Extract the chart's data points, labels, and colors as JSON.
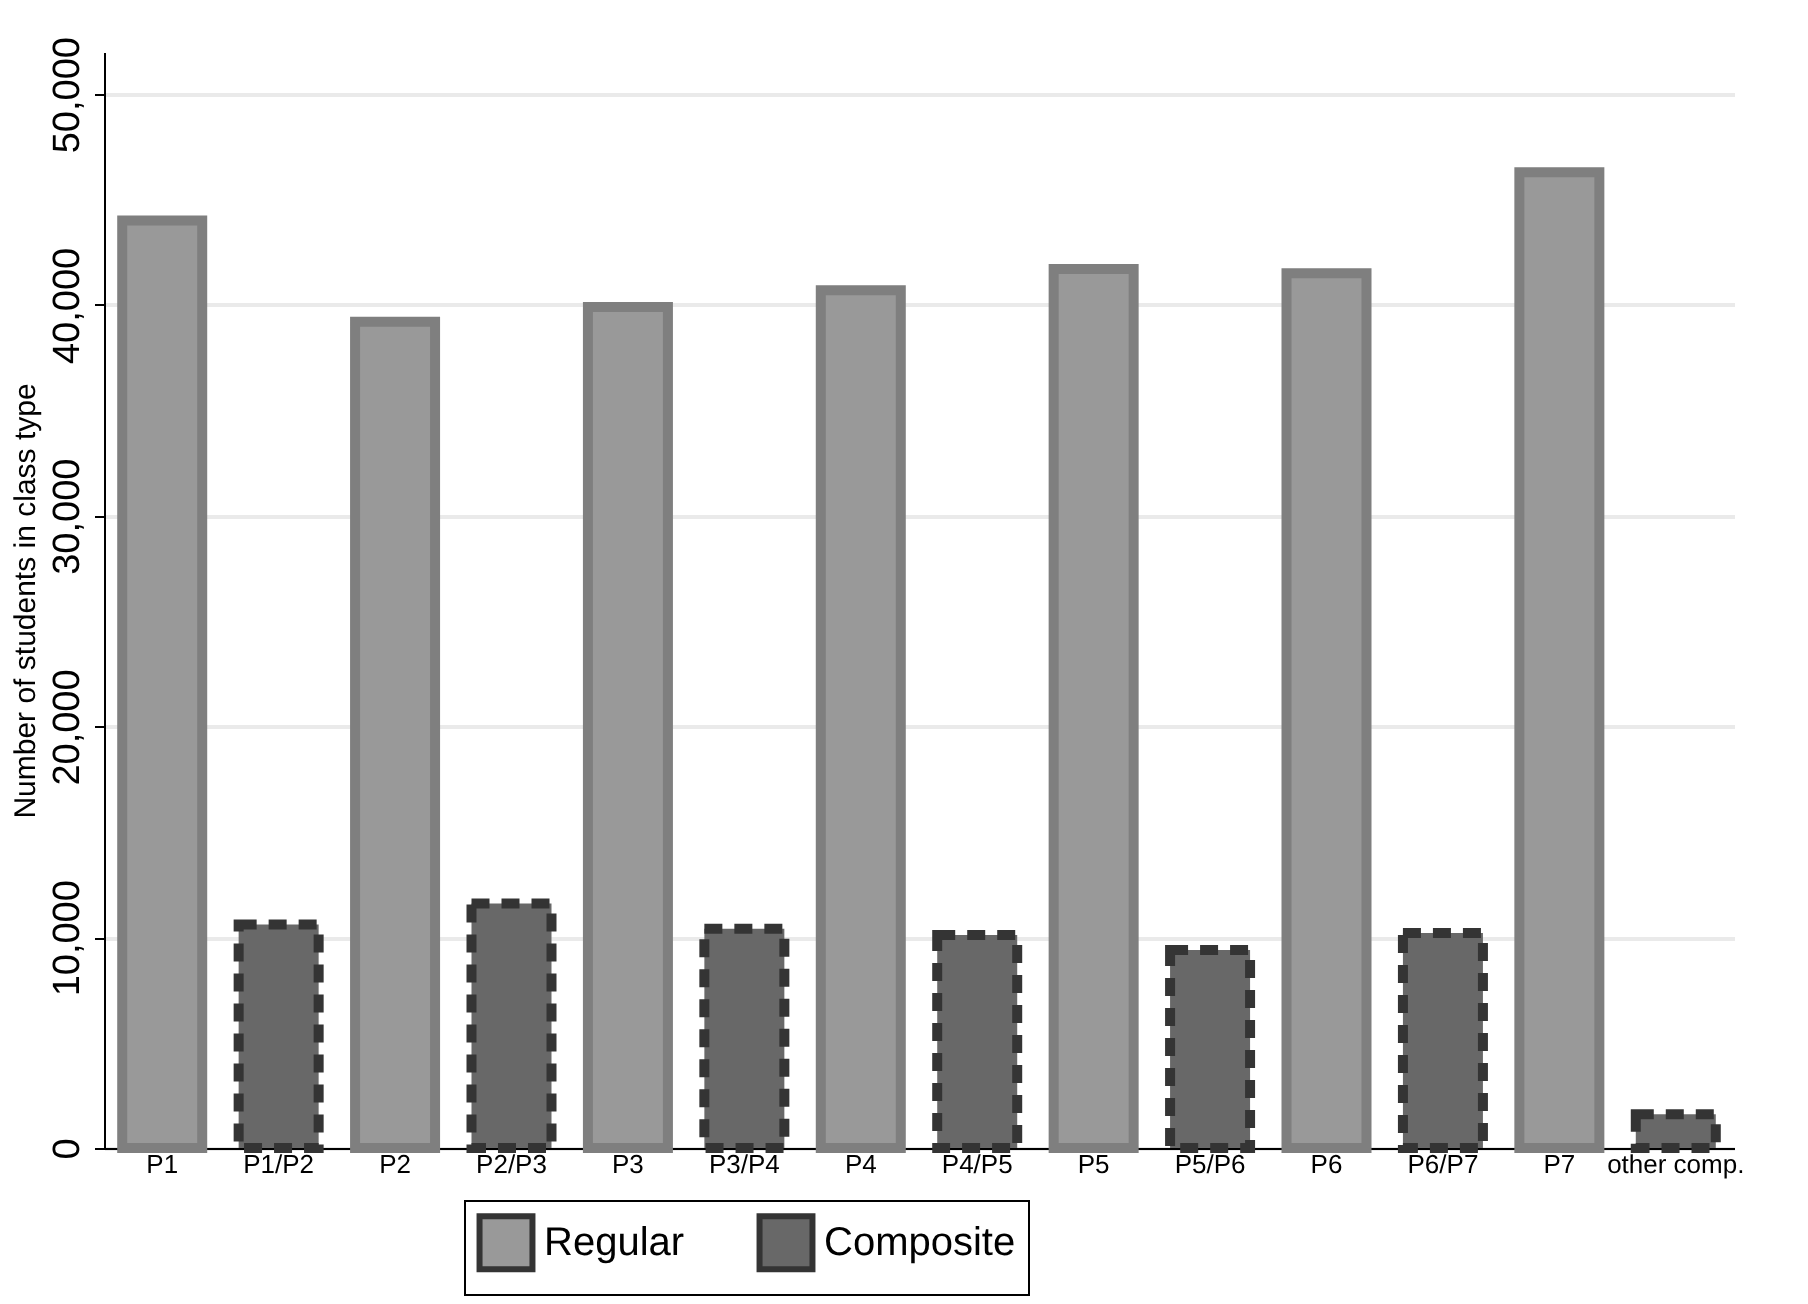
{
  "chart_data": {
    "type": "bar",
    "ylabel": "Number of students in class type",
    "categories": [
      "P1",
      "P1/P2",
      "P2",
      "P2/P3",
      "P3",
      "P3/P4",
      "P4",
      "P4/P5",
      "P5",
      "P5/P6",
      "P6",
      "P6/P7",
      "P7",
      "other comp."
    ],
    "series": [
      {
        "name": "Regular",
        "color": "#999999",
        "values": [
          44000,
          null,
          39200,
          null,
          39900,
          null,
          40700,
          null,
          41700,
          null,
          41500,
          null,
          46300,
          null
        ]
      },
      {
        "name": "Composite",
        "color": "#686868",
        "line_style": "dashed",
        "values": [
          null,
          10600,
          null,
          11600,
          null,
          10400,
          null,
          10100,
          null,
          9400,
          null,
          10200,
          null,
          1600
        ]
      }
    ],
    "ylim": [
      0,
      52000
    ],
    "yticks": [
      0,
      {
        "value": 10000,
        "label": "10,000"
      },
      {
        "value": 20000,
        "label": "20,000"
      },
      {
        "value": 30000,
        "label": "30,000"
      },
      {
        "value": 40000,
        "label": "40,000"
      },
      {
        "value": 50000,
        "label": "50,000"
      }
    ],
    "grid": "y",
    "legend": "bottom"
  }
}
